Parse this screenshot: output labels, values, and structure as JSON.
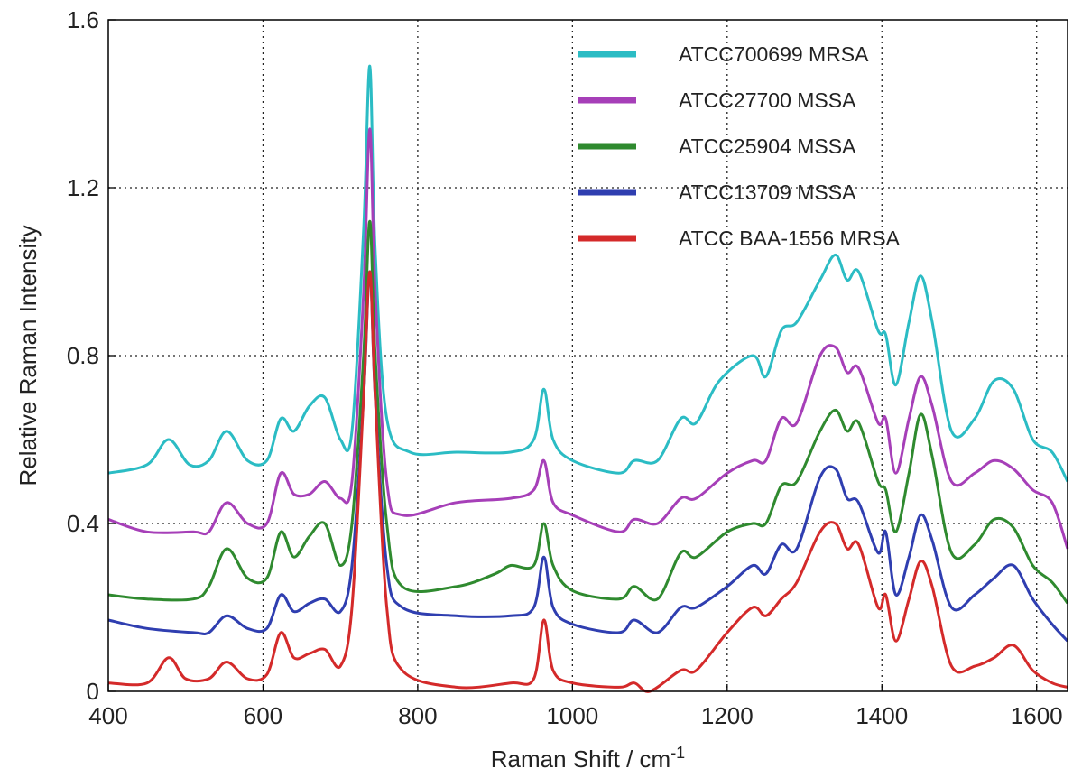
{
  "chart_data": {
    "type": "line",
    "title": "",
    "xlabel": "Raman Shift / cm",
    "xlabel_sup": "-1",
    "ylabel": "Relative Raman Intensity",
    "xlim": [
      400,
      1640
    ],
    "ylim": [
      0,
      1.6
    ],
    "x_ticks": [
      400,
      600,
      800,
      1000,
      1200,
      1400,
      1600
    ],
    "y_ticks": [
      0,
      0.4,
      0.8,
      1.2,
      1.6
    ],
    "y_tick_labels": [
      "0",
      "0.4",
      "0.8",
      "1.2",
      "1.6"
    ],
    "grid": true,
    "grid_style": "dotted",
    "legend_position": "top-right",
    "series": [
      {
        "name": "ATCC700699 MRSA",
        "color": "#2bbcc4",
        "points": [
          [
            400,
            0.52
          ],
          [
            450,
            0.54
          ],
          [
            478,
            0.6
          ],
          [
            505,
            0.54
          ],
          [
            530,
            0.55
          ],
          [
            553,
            0.62
          ],
          [
            580,
            0.55
          ],
          [
            605,
            0.55
          ],
          [
            623,
            0.65
          ],
          [
            640,
            0.62
          ],
          [
            660,
            0.68
          ],
          [
            680,
            0.7
          ],
          [
            700,
            0.6
          ],
          [
            715,
            0.62
          ],
          [
            730,
            1.1
          ],
          [
            738,
            1.49
          ],
          [
            745,
            1.05
          ],
          [
            760,
            0.65
          ],
          [
            790,
            0.57
          ],
          [
            850,
            0.57
          ],
          [
            920,
            0.57
          ],
          [
            950,
            0.6
          ],
          [
            963,
            0.72
          ],
          [
            975,
            0.6
          ],
          [
            1000,
            0.55
          ],
          [
            1060,
            0.52
          ],
          [
            1080,
            0.55
          ],
          [
            1110,
            0.55
          ],
          [
            1140,
            0.65
          ],
          [
            1160,
            0.64
          ],
          [
            1190,
            0.74
          ],
          [
            1233,
            0.8
          ],
          [
            1250,
            0.75
          ],
          [
            1270,
            0.86
          ],
          [
            1290,
            0.88
          ],
          [
            1320,
            0.98
          ],
          [
            1340,
            1.04
          ],
          [
            1355,
            0.98
          ],
          [
            1370,
            1.0
          ],
          [
            1395,
            0.86
          ],
          [
            1405,
            0.85
          ],
          [
            1418,
            0.73
          ],
          [
            1435,
            0.88
          ],
          [
            1450,
            0.99
          ],
          [
            1465,
            0.88
          ],
          [
            1490,
            0.62
          ],
          [
            1520,
            0.65
          ],
          [
            1545,
            0.74
          ],
          [
            1570,
            0.72
          ],
          [
            1595,
            0.6
          ],
          [
            1620,
            0.57
          ],
          [
            1640,
            0.5
          ]
        ]
      },
      {
        "name": "ATCC27700 MSSA",
        "color": "#a63fb8",
        "points": [
          [
            400,
            0.41
          ],
          [
            450,
            0.38
          ],
          [
            510,
            0.38
          ],
          [
            530,
            0.38
          ],
          [
            553,
            0.45
          ],
          [
            580,
            0.4
          ],
          [
            605,
            0.4
          ],
          [
            623,
            0.52
          ],
          [
            640,
            0.47
          ],
          [
            660,
            0.47
          ],
          [
            680,
            0.5
          ],
          [
            700,
            0.46
          ],
          [
            715,
            0.5
          ],
          [
            730,
            0.95
          ],
          [
            738,
            1.34
          ],
          [
            745,
            0.95
          ],
          [
            760,
            0.5
          ],
          [
            780,
            0.42
          ],
          [
            850,
            0.45
          ],
          [
            920,
            0.46
          ],
          [
            950,
            0.48
          ],
          [
            963,
            0.55
          ],
          [
            975,
            0.45
          ],
          [
            1000,
            0.42
          ],
          [
            1060,
            0.38
          ],
          [
            1080,
            0.41
          ],
          [
            1110,
            0.4
          ],
          [
            1140,
            0.46
          ],
          [
            1160,
            0.46
          ],
          [
            1200,
            0.52
          ],
          [
            1233,
            0.55
          ],
          [
            1250,
            0.55
          ],
          [
            1270,
            0.65
          ],
          [
            1290,
            0.64
          ],
          [
            1320,
            0.8
          ],
          [
            1340,
            0.82
          ],
          [
            1355,
            0.76
          ],
          [
            1370,
            0.77
          ],
          [
            1395,
            0.64
          ],
          [
            1405,
            0.65
          ],
          [
            1418,
            0.52
          ],
          [
            1435,
            0.65
          ],
          [
            1450,
            0.75
          ],
          [
            1465,
            0.68
          ],
          [
            1490,
            0.5
          ],
          [
            1520,
            0.52
          ],
          [
            1545,
            0.55
          ],
          [
            1570,
            0.53
          ],
          [
            1595,
            0.48
          ],
          [
            1620,
            0.45
          ],
          [
            1640,
            0.34
          ]
        ]
      },
      {
        "name": "ATCC25904 MSSA",
        "color": "#2f8a2f",
        "points": [
          [
            400,
            0.23
          ],
          [
            450,
            0.22
          ],
          [
            510,
            0.22
          ],
          [
            530,
            0.25
          ],
          [
            553,
            0.34
          ],
          [
            580,
            0.27
          ],
          [
            605,
            0.27
          ],
          [
            623,
            0.38
          ],
          [
            640,
            0.32
          ],
          [
            660,
            0.37
          ],
          [
            680,
            0.4
          ],
          [
            700,
            0.3
          ],
          [
            715,
            0.4
          ],
          [
            730,
            0.8
          ],
          [
            738,
            1.12
          ],
          [
            745,
            0.8
          ],
          [
            760,
            0.4
          ],
          [
            780,
            0.25
          ],
          [
            850,
            0.25
          ],
          [
            900,
            0.28
          ],
          [
            920,
            0.3
          ],
          [
            950,
            0.3
          ],
          [
            963,
            0.4
          ],
          [
            975,
            0.3
          ],
          [
            1000,
            0.24
          ],
          [
            1060,
            0.22
          ],
          [
            1080,
            0.25
          ],
          [
            1110,
            0.22
          ],
          [
            1140,
            0.33
          ],
          [
            1160,
            0.32
          ],
          [
            1200,
            0.38
          ],
          [
            1233,
            0.4
          ],
          [
            1250,
            0.4
          ],
          [
            1270,
            0.49
          ],
          [
            1290,
            0.5
          ],
          [
            1320,
            0.62
          ],
          [
            1340,
            0.67
          ],
          [
            1355,
            0.62
          ],
          [
            1370,
            0.64
          ],
          [
            1395,
            0.5
          ],
          [
            1405,
            0.48
          ],
          [
            1418,
            0.38
          ],
          [
            1435,
            0.52
          ],
          [
            1450,
            0.66
          ],
          [
            1465,
            0.56
          ],
          [
            1490,
            0.33
          ],
          [
            1520,
            0.35
          ],
          [
            1545,
            0.41
          ],
          [
            1570,
            0.39
          ],
          [
            1595,
            0.3
          ],
          [
            1620,
            0.26
          ],
          [
            1640,
            0.21
          ]
        ]
      },
      {
        "name": "ATCC13709 MSSA",
        "color": "#2f3eb0",
        "points": [
          [
            400,
            0.17
          ],
          [
            450,
            0.15
          ],
          [
            510,
            0.14
          ],
          [
            530,
            0.14
          ],
          [
            553,
            0.18
          ],
          [
            580,
            0.15
          ],
          [
            605,
            0.15
          ],
          [
            623,
            0.23
          ],
          [
            640,
            0.19
          ],
          [
            660,
            0.21
          ],
          [
            680,
            0.22
          ],
          [
            700,
            0.19
          ],
          [
            715,
            0.3
          ],
          [
            730,
            0.7
          ],
          [
            738,
            1.0
          ],
          [
            745,
            0.7
          ],
          [
            760,
            0.3
          ],
          [
            780,
            0.2
          ],
          [
            850,
            0.18
          ],
          [
            920,
            0.18
          ],
          [
            950,
            0.2
          ],
          [
            963,
            0.32
          ],
          [
            975,
            0.2
          ],
          [
            1000,
            0.16
          ],
          [
            1060,
            0.14
          ],
          [
            1080,
            0.17
          ],
          [
            1110,
            0.14
          ],
          [
            1140,
            0.2
          ],
          [
            1160,
            0.2
          ],
          [
            1200,
            0.25
          ],
          [
            1233,
            0.3
          ],
          [
            1250,
            0.28
          ],
          [
            1270,
            0.35
          ],
          [
            1290,
            0.34
          ],
          [
            1320,
            0.51
          ],
          [
            1340,
            0.53
          ],
          [
            1355,
            0.46
          ],
          [
            1370,
            0.45
          ],
          [
            1395,
            0.33
          ],
          [
            1405,
            0.38
          ],
          [
            1418,
            0.23
          ],
          [
            1435,
            0.32
          ],
          [
            1450,
            0.42
          ],
          [
            1465,
            0.36
          ],
          [
            1490,
            0.2
          ],
          [
            1520,
            0.23
          ],
          [
            1545,
            0.27
          ],
          [
            1570,
            0.3
          ],
          [
            1595,
            0.22
          ],
          [
            1620,
            0.16
          ],
          [
            1640,
            0.12
          ]
        ]
      },
      {
        "name": "ATCC BAA-1556 MRSA",
        "color": "#d42a2a",
        "points": [
          [
            400,
            0.02
          ],
          [
            450,
            0.02
          ],
          [
            478,
            0.08
          ],
          [
            500,
            0.03
          ],
          [
            530,
            0.03
          ],
          [
            553,
            0.07
          ],
          [
            580,
            0.03
          ],
          [
            605,
            0.04
          ],
          [
            623,
            0.14
          ],
          [
            640,
            0.08
          ],
          [
            660,
            0.09
          ],
          [
            680,
            0.1
          ],
          [
            700,
            0.06
          ],
          [
            715,
            0.2
          ],
          [
            730,
            0.7
          ],
          [
            738,
            1.0
          ],
          [
            745,
            0.7
          ],
          [
            760,
            0.2
          ],
          [
            780,
            0.05
          ],
          [
            850,
            0.01
          ],
          [
            920,
            0.02
          ],
          [
            950,
            0.03
          ],
          [
            963,
            0.17
          ],
          [
            975,
            0.05
          ],
          [
            1000,
            0.02
          ],
          [
            1060,
            0.01
          ],
          [
            1080,
            0.02
          ],
          [
            1100,
            0.0
          ],
          [
            1140,
            0.05
          ],
          [
            1160,
            0.05
          ],
          [
            1200,
            0.14
          ],
          [
            1233,
            0.2
          ],
          [
            1250,
            0.18
          ],
          [
            1270,
            0.22
          ],
          [
            1290,
            0.26
          ],
          [
            1320,
            0.38
          ],
          [
            1340,
            0.4
          ],
          [
            1355,
            0.34
          ],
          [
            1370,
            0.35
          ],
          [
            1395,
            0.2
          ],
          [
            1405,
            0.23
          ],
          [
            1418,
            0.12
          ],
          [
            1435,
            0.22
          ],
          [
            1450,
            0.31
          ],
          [
            1465,
            0.25
          ],
          [
            1490,
            0.06
          ],
          [
            1520,
            0.06
          ],
          [
            1545,
            0.08
          ],
          [
            1570,
            0.11
          ],
          [
            1595,
            0.05
          ],
          [
            1620,
            0.02
          ],
          [
            1640,
            0.01
          ]
        ]
      }
    ]
  }
}
